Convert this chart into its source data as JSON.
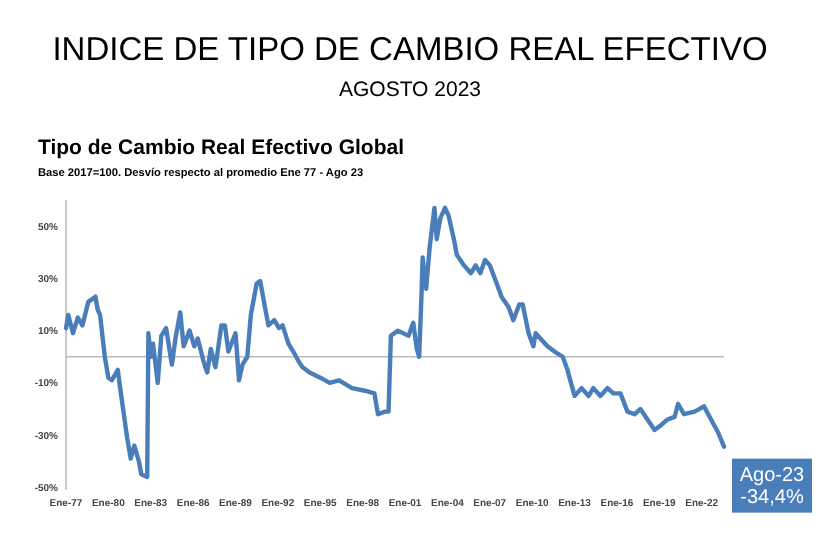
{
  "chart_data": {
    "type": "line",
    "title": "INDICE DE TIPO DE CAMBIO REAL EFECTIVO",
    "subtitle": "AGOSTO 2023",
    "annotations": [
      "Tipo de Cambio Real Efectivo Global",
      "Base 2017=100. Desvío respecto al promedio Ene 77 -  Ago 23",
      {
        "text": "Ago-23\n-34,4%",
        "x": "2023-08",
        "y": -34.4
      }
    ],
    "x": [
      "1977-01",
      "1977-03",
      "1977-07",
      "1977-11",
      "1978-03",
      "1978-08",
      "1979-02",
      "1979-04",
      "1979-06",
      "1979-10",
      "1980-01",
      "1980-04",
      "1980-09",
      "1980-11",
      "1981-05",
      "1981-08",
      "1981-11",
      "1982-03",
      "1982-05",
      "1982-10",
      "1982-11",
      "1983-01",
      "1983-03",
      "1983-07",
      "1983-10",
      "1984-02",
      "1984-07",
      "1984-10",
      "1985-02",
      "1985-05",
      "1985-10",
      "1986-02",
      "1986-05",
      "1986-10",
      "1987-01",
      "1987-04",
      "1987-08",
      "1988-01",
      "1988-04",
      "1988-07",
      "1989-01",
      "1989-04",
      "1989-07",
      "1989-11",
      "1990-02",
      "1990-07",
      "1990-10",
      "1991-02",
      "1991-05",
      "1991-10",
      "1992-02",
      "1992-05",
      "1992-10",
      "1993-02",
      "1993-07",
      "1993-10",
      "1994-04",
      "1995-01",
      "1995-09",
      "1996-05",
      "1997-04",
      "1998-03",
      "1998-11",
      "1999-02",
      "1999-08",
      "1999-11",
      "2000-01",
      "2000-07",
      "2001-04",
      "2001-08",
      "2001-11",
      "2002-01",
      "2002-03",
      "2002-04",
      "2002-07",
      "2002-10",
      "2003-02",
      "2003-04",
      "2003-07",
      "2003-11",
      "2004-02",
      "2004-07",
      "2004-09",
      "2005-03",
      "2005-09",
      "2006-01",
      "2006-05",
      "2006-09",
      "2007-01",
      "2007-07",
      "2007-11",
      "2008-05",
      "2008-09",
      "2009-02",
      "2009-05",
      "2009-10",
      "2010-02",
      "2010-04",
      "2010-08",
      "2011-02",
      "2011-08",
      "2012-03",
      "2012-07",
      "2013-01",
      "2013-07",
      "2014-01",
      "2014-05",
      "2014-11",
      "2015-05",
      "2015-10",
      "2016-04",
      "2016-10",
      "2017-04",
      "2017-09",
      "2018-03",
      "2018-09",
      "2019-03",
      "2019-08",
      "2020-02",
      "2020-05",
      "2020-10",
      "2021-07",
      "2022-03",
      "2022-09",
      "2023-03",
      "2023-08"
    ],
    "series": [
      {
        "color": "#4a7ebb",
        "values": [
          11,
          16,
          9,
          15,
          12,
          21,
          23,
          18,
          16,
          0,
          -8,
          -9,
          -5,
          -12,
          -31,
          -39,
          -34,
          -40,
          -45,
          -46,
          9,
          0,
          5,
          -10,
          8,
          11,
          -3,
          7,
          17,
          4,
          10,
          4,
          7,
          -2,
          -6,
          3,
          -4,
          12,
          12,
          2,
          9,
          -9,
          -3,
          0,
          16,
          28,
          29,
          19,
          12,
          14,
          11,
          12,
          5,
          2,
          -2,
          -4,
          -6,
          -8,
          -10,
          -9,
          -12,
          -13,
          -14,
          -22,
          -21,
          -21,
          8,
          10,
          8,
          13,
          3,
          0,
          23,
          38,
          26,
          42,
          57,
          45,
          53,
          57,
          54,
          44,
          39,
          35,
          32,
          35,
          32,
          37,
          35,
          28,
          23,
          19,
          14,
          20,
          20,
          9,
          4,
          9,
          7,
          4,
          2,
          0,
          -5,
          -15,
          -12,
          -15,
          -12,
          -15,
          -12,
          -14,
          -14,
          -21,
          -22,
          -20,
          -24,
          -28,
          -26,
          -24,
          -23,
          -18,
          -22,
          -21,
          -19,
          -24,
          -29,
          -34.4
        ]
      }
    ],
    "xlim": [
      "1977-01",
      "2023-08"
    ],
    "xticks": [
      {
        "value": "1977-01",
        "label": "Ene-77"
      },
      {
        "value": "1980-01",
        "label": "Ene-80"
      },
      {
        "value": "1983-01",
        "label": "Ene-83"
      },
      {
        "value": "1986-01",
        "label": "Ene-86"
      },
      {
        "value": "1989-01",
        "label": "Ene-89"
      },
      {
        "value": "1992-01",
        "label": "Ene-92"
      },
      {
        "value": "1995-01",
        "label": "Ene-95"
      },
      {
        "value": "1998-01",
        "label": "Ene-98"
      },
      {
        "value": "2001-01",
        "label": "Ene-01"
      },
      {
        "value": "2004-01",
        "label": "Ene-04"
      },
      {
        "value": "2007-01",
        "label": "Ene-07"
      },
      {
        "value": "2010-01",
        "label": "Ene-10"
      },
      {
        "value": "2013-01",
        "label": "Ene-13"
      },
      {
        "value": "2016-01",
        "label": "Ene-16"
      },
      {
        "value": "2019-01",
        "label": "Ene-19"
      },
      {
        "value": "2022-01",
        "label": "Ene-22"
      }
    ],
    "ylim": [
      -51,
      60
    ],
    "yticks": [
      {
        "value": 50,
        "label": "50%"
      },
      {
        "value": 30,
        "label": "30%"
      },
      {
        "value": 10,
        "label": "10%"
      },
      {
        "value": -10,
        "label": "-10%"
      },
      {
        "value": -30,
        "label": "-30%"
      },
      {
        "value": -50,
        "label": "-50%"
      }
    ],
    "grid": false,
    "marker": "none",
    "line_style": "solid"
  }
}
